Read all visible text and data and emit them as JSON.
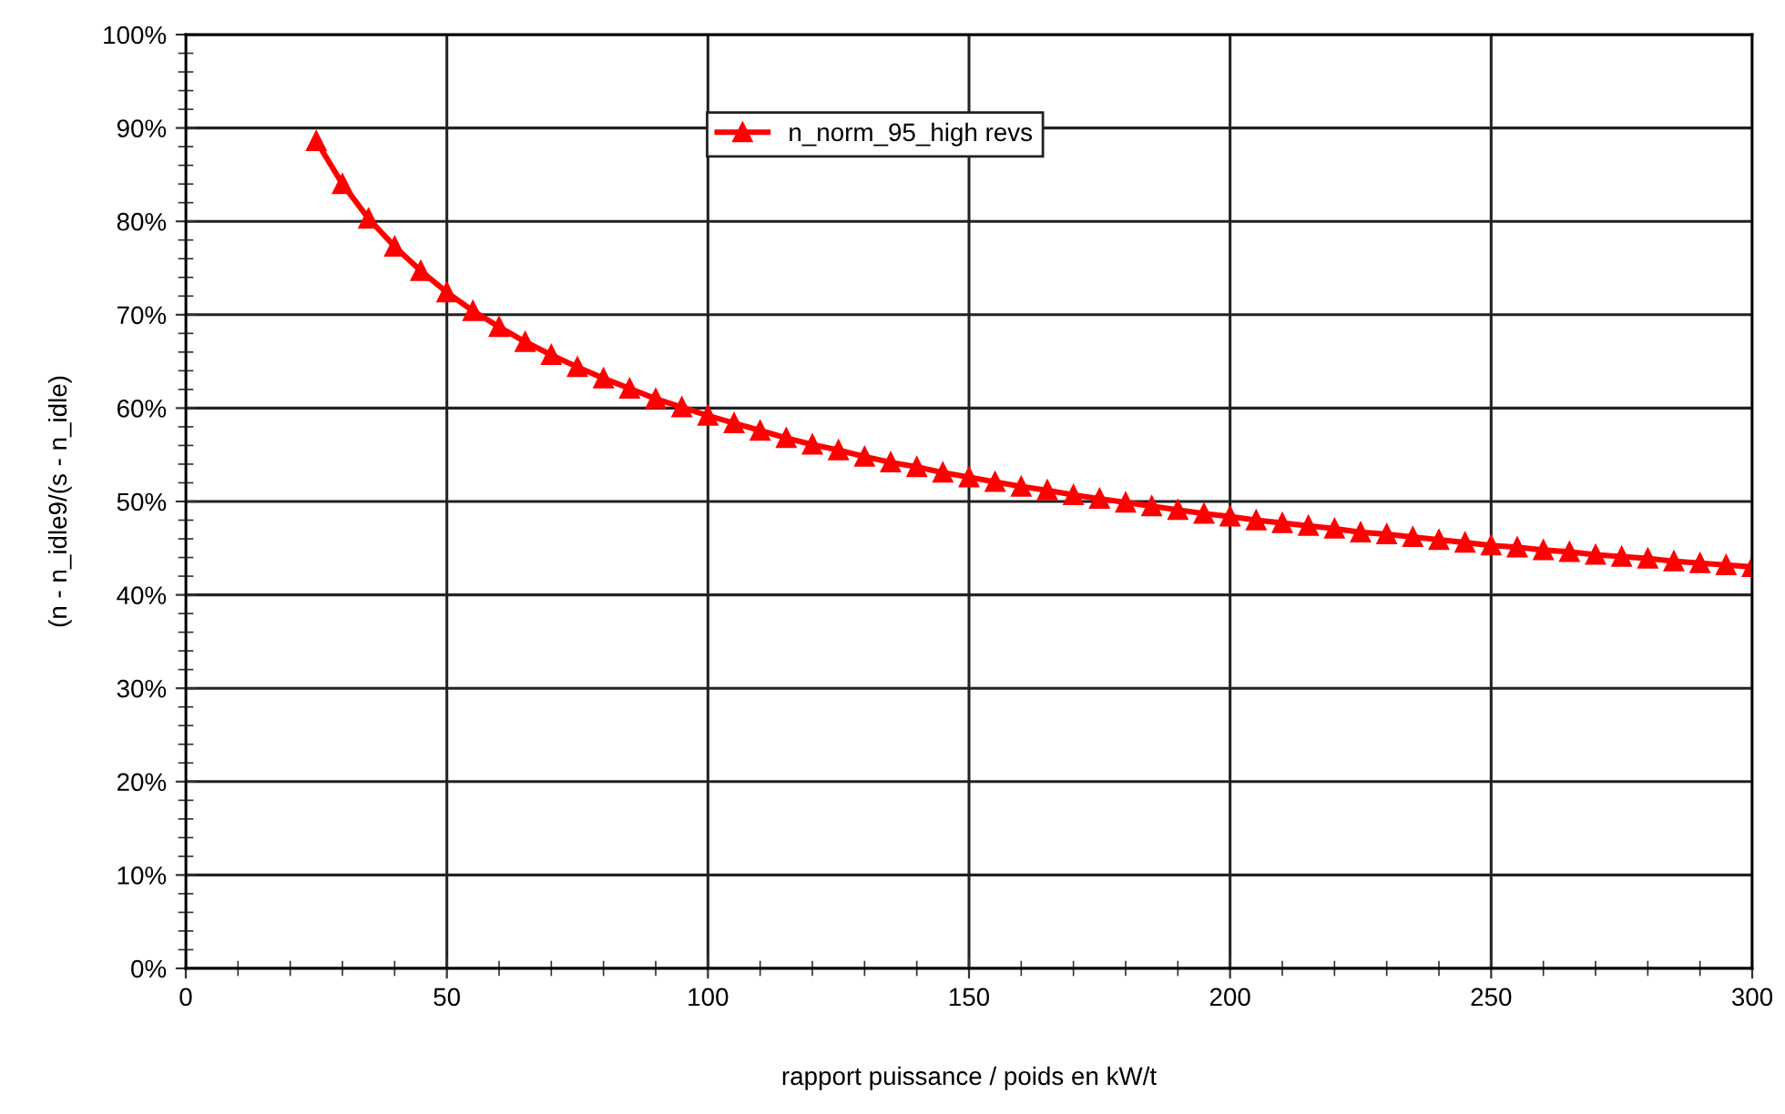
{
  "chart_data": {
    "type": "line",
    "xlabel": "rapport puissance / poids en kW/t",
    "ylabel": "(n - n_idle9/(s - n_idle)",
    "x": [
      25,
      30,
      35,
      40,
      45,
      50,
      55,
      60,
      65,
      70,
      75,
      80,
      85,
      90,
      95,
      100,
      105,
      110,
      115,
      120,
      125,
      130,
      135,
      140,
      145,
      150,
      155,
      160,
      165,
      170,
      175,
      180,
      185,
      190,
      195,
      200,
      205,
      210,
      215,
      220,
      225,
      230,
      235,
      240,
      245,
      250,
      255,
      260,
      265,
      270,
      275,
      280,
      285,
      290,
      295,
      300
    ],
    "series": [
      {
        "name": "n_norm_95_high revs",
        "color": "#ff0000",
        "values": [
          88.6,
          84.0,
          80.3,
          77.3,
          74.7,
          72.4,
          70.4,
          68.7,
          67.1,
          65.7,
          64.4,
          63.2,
          62.1,
          61.0,
          60.1,
          59.2,
          58.4,
          57.6,
          56.8,
          56.1,
          55.5,
          54.8,
          54.2,
          53.7,
          53.1,
          52.6,
          52.1,
          51.6,
          51.2,
          50.7,
          50.3,
          49.9,
          49.5,
          49.1,
          48.7,
          48.4,
          48.0,
          47.7,
          47.4,
          47.1,
          46.7,
          46.5,
          46.2,
          45.9,
          45.6,
          45.3,
          45.1,
          44.8,
          44.6,
          44.3,
          44.1,
          43.9,
          43.6,
          43.4,
          43.2,
          43.0
        ]
      }
    ],
    "xlim": [
      0,
      300
    ],
    "ylim": [
      0,
      100
    ],
    "xticks": [
      0,
      50,
      100,
      150,
      200,
      250,
      300,
      {
        "value": 10,
        "label": null
      },
      {
        "value": 20,
        "label": null
      },
      {
        "value": 30,
        "label": null
      },
      {
        "value": 40,
        "label": null
      },
      {
        "value": 60,
        "label": null
      },
      {
        "value": 70,
        "label": null
      },
      {
        "value": 80,
        "label": null
      },
      {
        "value": 90,
        "label": null
      },
      {
        "value": 110,
        "label": null
      },
      {
        "value": 120,
        "label": null
      },
      {
        "value": 130,
        "label": null
      },
      {
        "value": 140,
        "label": null
      },
      {
        "value": 160,
        "label": null
      },
      {
        "value": 170,
        "label": null
      },
      {
        "value": 180,
        "label": null
      },
      {
        "value": 190,
        "label": null
      },
      {
        "value": 210,
        "label": null
      },
      {
        "value": 220,
        "label": null
      },
      {
        "value": 230,
        "label": null
      },
      {
        "value": 240,
        "label": null
      },
      {
        "value": 260,
        "label": null
      },
      {
        "value": 270,
        "label": null
      },
      {
        "value": 280,
        "label": null
      },
      {
        "value": 290,
        "label": null
      }
    ],
    "yticks": [
      {
        "value": 0,
        "label": "0%"
      },
      {
        "value": 10,
        "label": "10%"
      },
      {
        "value": 20,
        "label": "20%"
      },
      {
        "value": 30,
        "label": "30%"
      },
      {
        "value": 40,
        "label": "40%"
      },
      {
        "value": 50,
        "label": "50%"
      },
      {
        "value": 60,
        "label": "60%"
      },
      {
        "value": 70,
        "label": "70%"
      },
      {
        "value": 80,
        "label": "80%"
      },
      {
        "value": 90,
        "label": "90%"
      },
      {
        "value": 100,
        "label": "100%"
      },
      {
        "value": 2,
        "label": null
      },
      {
        "value": 4,
        "label": null
      },
      {
        "value": 6,
        "label": null
      },
      {
        "value": 8,
        "label": null
      },
      {
        "value": 12,
        "label": null
      },
      {
        "value": 14,
        "label": null
      },
      {
        "value": 16,
        "label": null
      },
      {
        "value": 18,
        "label": null
      },
      {
        "value": 22,
        "label": null
      },
      {
        "value": 24,
        "label": null
      },
      {
        "value": 26,
        "label": null
      },
      {
        "value": 28,
        "label": null
      },
      {
        "value": 32,
        "label": null
      },
      {
        "value": 34,
        "label": null
      },
      {
        "value": 36,
        "label": null
      },
      {
        "value": 38,
        "label": null
      },
      {
        "value": 42,
        "label": null
      },
      {
        "value": 44,
        "label": null
      },
      {
        "value": 46,
        "label": null
      },
      {
        "value": 48,
        "label": null
      },
      {
        "value": 52,
        "label": null
      },
      {
        "value": 54,
        "label": null
      },
      {
        "value": 56,
        "label": null
      },
      {
        "value": 58,
        "label": null
      },
      {
        "value": 62,
        "label": null
      },
      {
        "value": 64,
        "label": null
      },
      {
        "value": 66,
        "label": null
      },
      {
        "value": 68,
        "label": null
      },
      {
        "value": 72,
        "label": null
      },
      {
        "value": 74,
        "label": null
      },
      {
        "value": 76,
        "label": null
      },
      {
        "value": 78,
        "label": null
      },
      {
        "value": 82,
        "label": null
      },
      {
        "value": 84,
        "label": null
      },
      {
        "value": 86,
        "label": null
      },
      {
        "value": 88,
        "label": null
      },
      {
        "value": 92,
        "label": null
      },
      {
        "value": 94,
        "label": null
      },
      {
        "value": 96,
        "label": null
      },
      {
        "value": 98,
        "label": null
      }
    ],
    "grid": true,
    "legend": "top",
    "marker": "triangle",
    "line_style": "solid"
  }
}
